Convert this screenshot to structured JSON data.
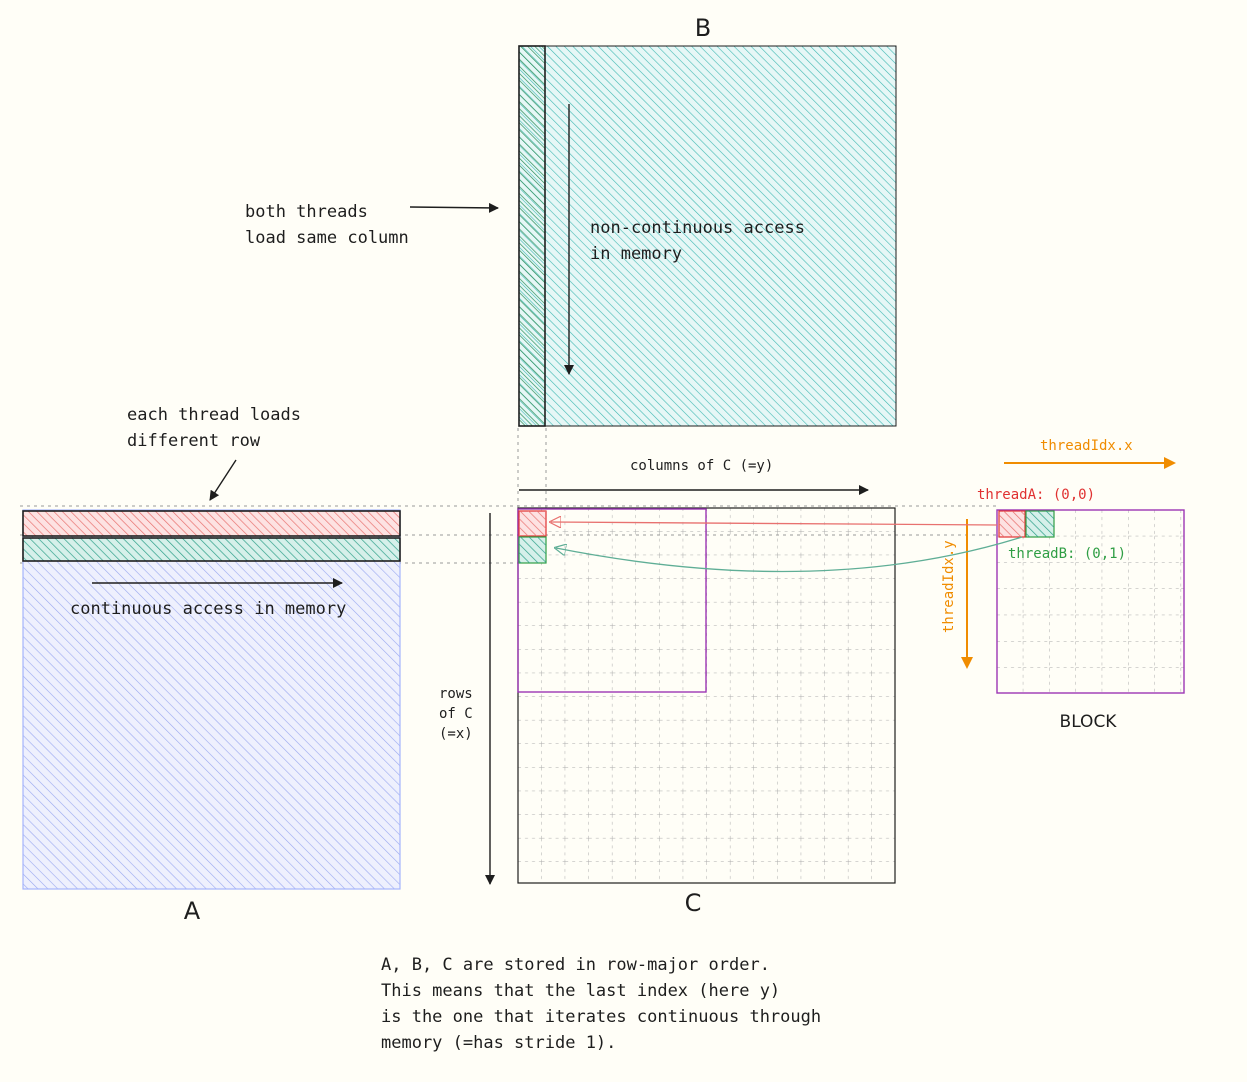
{
  "matrices": {
    "a_label": "A",
    "b_label": "B",
    "c_label": "C",
    "block_label": "BLOCK"
  },
  "annotations": {
    "both_threads": [
      "both threads",
      "load same column"
    ],
    "non_continuous": [
      "non-continuous access",
      "in memory"
    ],
    "each_thread": [
      "each thread loads",
      "different row"
    ],
    "continuous": "continuous access in memory",
    "columns_of_c": "columns of C (=y)",
    "rows_of_c": [
      "rows",
      "of C",
      "(=x)"
    ],
    "thread_idx_x": "threadIdx.x",
    "thread_idx_y": "threadIdx.y",
    "thread_a": "threadA: (0,0)",
    "thread_b": "threadB: (0,1)",
    "footnote": [
      "A, B, C are stored in row-major order.",
      "This means that the last index (here y)",
      "is the one that iterates continuous through",
      "memory (=has stride 1)."
    ]
  },
  "colors": {
    "matrix_a_fill": "#a5b4fc",
    "matrix_b_fill": "#5fc9c4",
    "thread_a_color": "#e03131",
    "thread_b_color": "#2f9e44",
    "thread_idx_color": "#f08c00",
    "block_outline": "#9c36b5",
    "ink": "#1e1e1e"
  }
}
